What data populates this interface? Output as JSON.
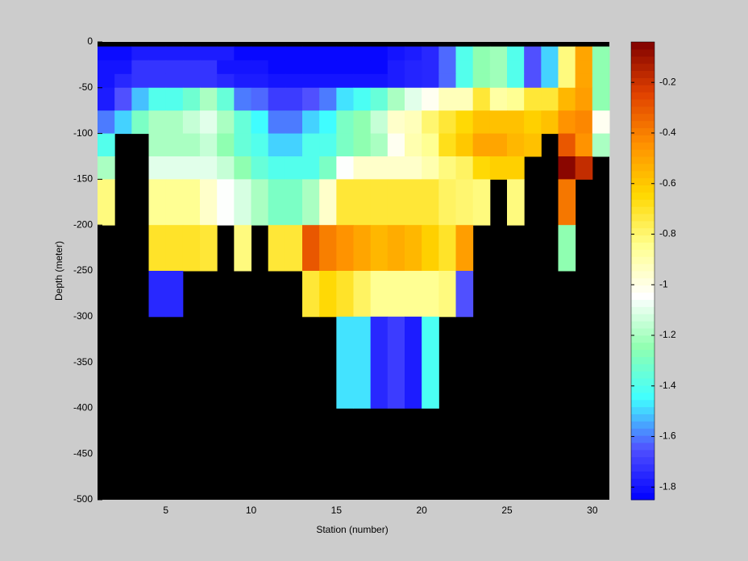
{
  "chart_data": {
    "type": "heatmap",
    "xlabel": "Station (number)",
    "ylabel": "Depth (meter)",
    "xlim": [
      1,
      31
    ],
    "ylim": [
      -500,
      0
    ],
    "xticks": [
      5,
      10,
      15,
      20,
      25,
      30
    ],
    "yticks": [
      0,
      -50,
      -100,
      -150,
      -200,
      -250,
      -300,
      -350,
      -400,
      -450,
      -500
    ],
    "x_edges": [
      1,
      2,
      3,
      4,
      5,
      6,
      7,
      8,
      9,
      10,
      11,
      12,
      13,
      14,
      15,
      16,
      17,
      18,
      19,
      20,
      21,
      22,
      23,
      24,
      25,
      26,
      27,
      28,
      29,
      30,
      31
    ],
    "y_edges": [
      -5,
      -20,
      -35,
      -50,
      -75,
      -100,
      -125,
      -150,
      -200,
      -250,
      -300,
      -400
    ],
    "values": [
      [
        -1.82,
        -1.82,
        -1.78,
        -1.78,
        -1.78,
        -1.78,
        -1.78,
        -1.78,
        -1.83,
        -1.83,
        -1.83,
        -1.83,
        -1.83,
        -1.83,
        -1.83,
        -1.83,
        -1.83,
        -1.8,
        -1.78,
        -1.75,
        -1.62,
        -1.4,
        -1.25,
        -1.22,
        -1.4,
        -1.65,
        -1.5,
        -0.82,
        -0.5,
        -1.25
      ],
      [
        -1.8,
        -1.8,
        -1.72,
        -1.72,
        -1.72,
        -1.72,
        -1.72,
        -1.8,
        -1.8,
        -1.8,
        -1.83,
        -1.83,
        -1.83,
        -1.83,
        -1.83,
        -1.83,
        -1.83,
        -1.78,
        -1.76,
        -1.75,
        -1.62,
        -1.4,
        -1.25,
        -1.22,
        -1.4,
        -1.65,
        -1.5,
        -0.82,
        -0.5,
        -1.25
      ],
      [
        -1.8,
        -1.75,
        -1.72,
        -1.72,
        -1.72,
        -1.72,
        -1.72,
        -1.75,
        -1.78,
        -1.78,
        -1.8,
        -1.8,
        -1.8,
        -1.8,
        -1.8,
        -1.8,
        -1.8,
        -1.78,
        -1.76,
        -1.75,
        -1.62,
        -1.4,
        -1.25,
        -1.22,
        -1.4,
        -1.65,
        -1.5,
        -0.82,
        -0.5,
        -1.25
      ],
      [
        -1.78,
        -1.65,
        -1.52,
        -1.4,
        -1.4,
        -1.33,
        -1.2,
        -1.35,
        -1.6,
        -1.62,
        -1.7,
        -1.7,
        -1.65,
        -1.6,
        -1.48,
        -1.42,
        -1.35,
        -1.2,
        -1.1,
        -1.02,
        -0.92,
        -0.92,
        -0.72,
        -0.88,
        -0.85,
        -0.72,
        -0.72,
        -0.55,
        -0.48,
        -1.25
      ],
      [
        -1.6,
        -1.5,
        -1.3,
        -1.2,
        -1.2,
        -1.15,
        -1.1,
        -1.2,
        -1.35,
        -1.45,
        -1.6,
        -1.6,
        -1.5,
        -1.45,
        -1.3,
        -1.25,
        -1.15,
        -0.95,
        -0.92,
        -0.8,
        -0.72,
        -0.65,
        -0.58,
        -0.58,
        -0.58,
        -0.62,
        -0.58,
        -0.45,
        -0.42,
        -1.02
      ],
      [
        -1.4,
        null,
        null,
        -1.2,
        -1.2,
        -1.2,
        -1.15,
        -1.25,
        -1.35,
        -1.4,
        -1.5,
        -1.5,
        -1.4,
        -1.4,
        -1.3,
        -1.25,
        -1.2,
        -1.02,
        -0.9,
        -0.85,
        -0.68,
        -0.6,
        -0.5,
        -0.5,
        -0.55,
        -0.58,
        null,
        -0.3,
        -0.45,
        -1.2
      ],
      [
        -1.2,
        null,
        null,
        -1.1,
        -1.1,
        -1.1,
        -1.1,
        -1.15,
        -1.25,
        -1.35,
        -1.4,
        -1.4,
        -1.4,
        -1.3,
        -1.05,
        -0.95,
        -0.95,
        -0.95,
        -0.95,
        -0.9,
        -0.82,
        -0.78,
        -0.65,
        -0.62,
        -0.62,
        null,
        null,
        -0.06,
        -0.18,
        null
      ],
      [
        -0.82,
        null,
        null,
        -0.85,
        -0.85,
        -0.85,
        -0.95,
        -1.05,
        -1.12,
        -1.2,
        -1.3,
        -1.3,
        -1.2,
        -0.95,
        -0.72,
        -0.72,
        -0.72,
        -0.72,
        -0.72,
        -0.72,
        -0.78,
        -0.8,
        -0.82,
        null,
        -0.82,
        null,
        null,
        -0.38,
        null,
        null
      ],
      [
        null,
        null,
        null,
        -0.7,
        -0.7,
        -0.7,
        -0.72,
        null,
        -0.82,
        null,
        -0.72,
        -0.72,
        -0.3,
        -0.4,
        -0.45,
        -0.5,
        -0.55,
        -0.52,
        -0.55,
        -0.62,
        -0.7,
        -0.48,
        null,
        null,
        null,
        null,
        null,
        -1.25,
        null,
        null
      ],
      [
        null,
        null,
        null,
        -1.75,
        -1.75,
        null,
        null,
        null,
        null,
        null,
        null,
        null,
        -0.72,
        -0.65,
        -0.7,
        -0.78,
        -0.85,
        -0.85,
        -0.85,
        -0.85,
        -0.82,
        -1.65,
        null,
        null,
        null,
        null,
        null,
        null,
        null,
        null
      ],
      [
        null,
        null,
        null,
        null,
        null,
        null,
        null,
        null,
        null,
        null,
        null,
        null,
        null,
        null,
        -1.48,
        -1.48,
        -1.75,
        -1.7,
        -1.78,
        -1.42,
        null,
        null,
        null,
        null,
        null,
        null,
        null,
        null,
        null,
        null
      ]
    ],
    "background_color": "#000000",
    "colormap": [
      "#0000ff",
      "#5050ff",
      "#40ffff",
      "#90ffb0",
      "#ffffff",
      "#ffff90",
      "#ffd800",
      "#ff9000",
      "#e04000",
      "#800000"
    ],
    "clim": [
      -1.85,
      -0.04
    ],
    "cticks": [
      -1.8,
      -1.6,
      -1.4,
      -1.2,
      -1,
      -0.8,
      -0.6,
      -0.4,
      -0.2
    ]
  }
}
